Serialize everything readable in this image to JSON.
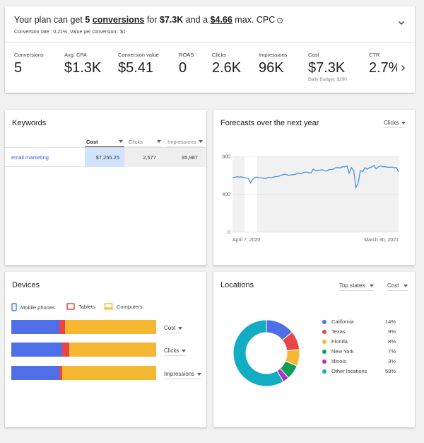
{
  "plan": {
    "headline": {
      "part1": "Your plan can get ",
      "conv_num": "5",
      "conv_word": "conversions",
      "part2": " for ",
      "cost": "$7.3K",
      "part3": " and a ",
      "cpc": "$4.66",
      "part4": " max. CPC"
    },
    "subline": "Conversion rate : 0.21%, Value per conversion : $1",
    "metrics": [
      {
        "label": "Conversions",
        "value": "5"
      },
      {
        "label": "Avg. CPA",
        "value": "$1.3K"
      },
      {
        "label": "Conversion value",
        "value": "$5.41"
      },
      {
        "label": "ROAS",
        "value": "0"
      },
      {
        "label": "Clicks",
        "value": "2.6K"
      },
      {
        "label": "Impressions",
        "value": "96K"
      },
      {
        "label": "Cost",
        "value": "$7.3K",
        "note": "Daily Budget: $290"
      },
      {
        "label": "CTR",
        "value": "2.7%"
      }
    ]
  },
  "keywords": {
    "title": "Keywords",
    "columns": [
      "Cost",
      "Clicks",
      "Impressions"
    ],
    "rows": [
      {
        "keyword": "email marketing",
        "cost": "$7,255.25",
        "clicks": "2,577",
        "impressions": "95,987"
      }
    ]
  },
  "forecast": {
    "title": "Forecasts over the next year",
    "metric_select": "Clicks"
  },
  "chart_data": {
    "type": "line",
    "title": "Forecasts over the next year",
    "x_start_label": "April 7, 2020",
    "x_end_label": "March 30, 2021",
    "y_ticks": [
      "0",
      "400",
      "800"
    ],
    "ylim": [
      0,
      800
    ],
    "series": [
      {
        "values": [
          575,
          580,
          585,
          582,
          584,
          578,
          572,
          570,
          520,
          560,
          578,
          582,
          575,
          572,
          570,
          566,
          578,
          575,
          580,
          586,
          588,
          594,
          604,
          612,
          608,
          600,
          605,
          606,
          610,
          624,
          618,
          620,
          632,
          635,
          628,
          624,
          665,
          648,
          652,
          655,
          658,
          650,
          645,
          660,
          662,
          666,
          680,
          682,
          678,
          690,
          690,
          700,
          622,
          682,
          650,
          470,
          518,
          650,
          640,
          680,
          664,
          680,
          688,
          706,
          668,
          690,
          700,
          690,
          690,
          686,
          684,
          688,
          680,
          682,
          640
        ]
      }
    ],
    "color": "#4a90d9",
    "grid": true
  },
  "devices": {
    "title": "Devices",
    "legend": [
      {
        "label": "Mobile phones",
        "color": "#4f6fe8"
      },
      {
        "label": "Tablets",
        "color": "#e84646"
      },
      {
        "label": "Computers",
        "color": "#f5b731"
      }
    ],
    "bars": [
      {
        "metric": "Cost",
        "shares": [
          33,
          4,
          63
        ]
      },
      {
        "metric": "Clicks",
        "shares": [
          35,
          5,
          60
        ]
      },
      {
        "metric": "Impressions",
        "shares": [
          33,
          2,
          65
        ]
      }
    ]
  },
  "locations": {
    "title": "Locations",
    "region_select": "Top states",
    "metric_select": "Cost",
    "items": [
      {
        "name": "California",
        "pct": "14%",
        "value": 14,
        "color": "#4f6fe8"
      },
      {
        "name": "Texas",
        "pct": "9%",
        "value": 9,
        "color": "#e84646"
      },
      {
        "name": "Florida",
        "pct": "8%",
        "value": 8,
        "color": "#f5b731"
      },
      {
        "name": "New York",
        "pct": "7%",
        "value": 7,
        "color": "#0f9d58"
      },
      {
        "name": "Illinois",
        "pct": "3%",
        "value": 3,
        "color": "#ab30c4"
      },
      {
        "name": "Other locations",
        "pct": "58%",
        "value": 58,
        "color": "#12acc3"
      }
    ]
  }
}
